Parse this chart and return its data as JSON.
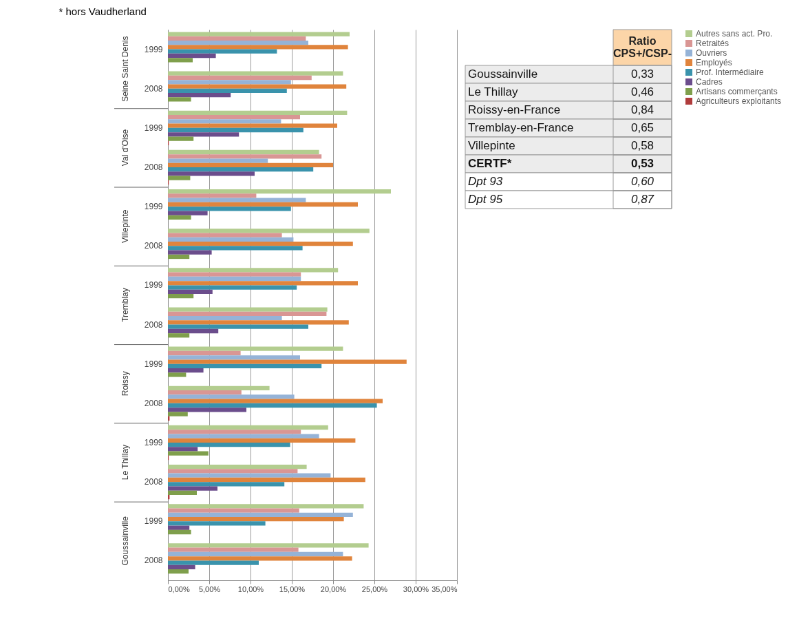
{
  "chart_data": [
    {
      "type": "bar",
      "orientation": "horizontal",
      "annotations": [
        "* hors Vaudherland",
        "Seine Saint Denis",
        "Val d'Oise",
        "Villepinte",
        "Tremblay",
        "Roissy",
        "Le Thillay",
        "Goussainville"
      ],
      "categories": [
        "1999",
        "2008",
        "1999",
        "2008",
        "1999",
        "2008",
        "1999",
        "2008",
        "1999",
        "2008",
        "1999",
        "2008",
        "1999",
        "2008"
      ],
      "series": [
        {
          "name": "Autres sans act. Pro.",
          "color": "#b3cd8f",
          "values": [
            22.0,
            21.2,
            21.7,
            18.3,
            27.0,
            24.4,
            20.6,
            19.3,
            21.2,
            12.3,
            19.4,
            16.8,
            23.7,
            24.3
          ]
        },
        {
          "name": "Retraités",
          "color": "#d99694",
          "values": [
            16.7,
            17.4,
            16.0,
            18.6,
            10.7,
            13.8,
            16.1,
            19.2,
            8.8,
            8.9,
            16.1,
            15.7,
            15.9,
            15.8
          ]
        },
        {
          "name": "Ouvriers",
          "color": "#95b3d7",
          "values": [
            17.0,
            14.9,
            13.7,
            12.1,
            16.7,
            15.2,
            16.1,
            13.8,
            16.0,
            15.3,
            18.3,
            19.7,
            22.4,
            21.2
          ]
        },
        {
          "name": "Employés",
          "color": "#e0843c",
          "values": [
            21.8,
            21.6,
            20.5,
            20.0,
            23.0,
            22.4,
            23.0,
            21.9,
            28.9,
            26.0,
            22.7,
            23.9,
            21.3,
            22.3
          ]
        },
        {
          "name": "Prof. Intermédiaire",
          "color": "#3a93ac",
          "values": [
            13.2,
            14.4,
            16.4,
            17.6,
            14.9,
            16.3,
            15.6,
            17.0,
            18.6,
            25.3,
            14.8,
            14.1,
            11.8,
            11.0
          ]
        },
        {
          "name": "Cadres",
          "color": "#6b4d8c",
          "values": [
            5.8,
            7.6,
            8.6,
            10.5,
            4.8,
            5.3,
            5.4,
            6.1,
            4.3,
            9.5,
            3.6,
            6.0,
            2.6,
            3.3
          ]
        },
        {
          "name": "Artisans commerçants",
          "color": "#7f9f4c",
          "values": [
            3.0,
            2.8,
            3.1,
            2.7,
            2.8,
            2.6,
            3.1,
            2.6,
            2.2,
            2.4,
            4.9,
            3.5,
            2.8,
            2.5
          ]
        },
        {
          "name": "Agriculteurs exploitants",
          "color": "#b03c3c",
          "values": [
            0.0,
            0.0,
            0.1,
            0.1,
            0.0,
            0.0,
            0.0,
            0.0,
            0.0,
            0.2,
            0.1,
            0.2,
            0.0,
            0.0
          ]
        }
      ],
      "xlim": [
        0,
        35
      ],
      "xticks": [
        {
          "value": 0,
          "label": "0,00%"
        },
        {
          "value": 5,
          "label": "5,00%"
        },
        {
          "value": 10,
          "label": "10,00%"
        },
        {
          "value": 15,
          "label": "15,00%"
        },
        {
          "value": 20,
          "label": "20,00%"
        },
        {
          "value": 25,
          "label": "25,00%"
        },
        {
          "value": 30,
          "label": "30,00%"
        },
        {
          "value": 35,
          "label": "35,00%"
        }
      ],
      "grid": "x",
      "legend": "right"
    },
    {
      "type": "other",
      "title": "Ratio CPS+/CSP-",
      "categories": [
        "Goussainville",
        "Le Thillay",
        "Roissy-en-France",
        "Tremblay-en-France",
        "Villepinte",
        "CERTF*",
        "Dpt 93",
        "Dpt 95"
      ],
      "value_labels": [
        "0,33",
        "0,46",
        "0,84",
        "0,65",
        "0,58",
        "0,53",
        "0,60",
        "0,87"
      ]
    }
  ]
}
